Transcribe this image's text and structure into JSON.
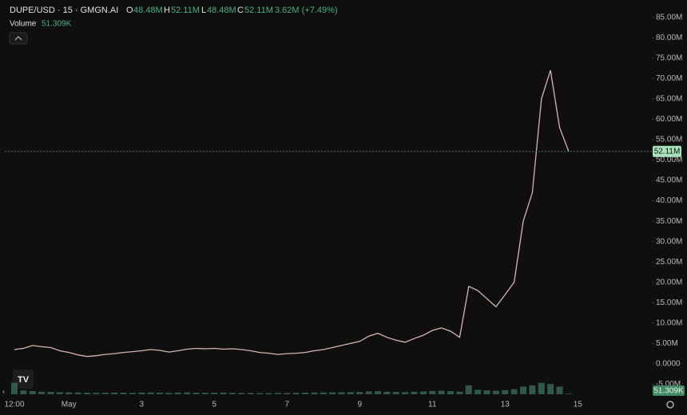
{
  "chart_data": {
    "type": "line",
    "title": "DUPE/USD · 15 · GMGN.AI",
    "ohlc": {
      "O": "48.48M",
      "H": "52.11M",
      "L": "48.48M",
      "C": "52.11M"
    },
    "change": "3.62M (+7.49%)",
    "categories": [
      "12:00",
      null,
      null,
      null,
      null,
      null,
      "May",
      null,
      null,
      null,
      null,
      null,
      null,
      null,
      "3",
      null,
      null,
      null,
      null,
      null,
      null,
      null,
      "5",
      null,
      null,
      null,
      null,
      null,
      null,
      null,
      "7",
      null,
      null,
      null,
      null,
      null,
      null,
      null,
      "9",
      null,
      null,
      null,
      null,
      null,
      null,
      null,
      "11",
      null,
      null,
      null,
      null,
      null,
      null,
      null,
      "13",
      null,
      null,
      null,
      null,
      null,
      null,
      null,
      "15"
    ],
    "series": [
      {
        "name": "DUPE/USD",
        "color": "#d8b4ae",
        "values": [
          3.5,
          3.8,
          4.5,
          4.2,
          4.0,
          3.2,
          2.8,
          2.2,
          1.8,
          2.0,
          2.3,
          2.5,
          2.8,
          3.0,
          3.2,
          3.5,
          3.3,
          2.9,
          3.2,
          3.6,
          3.8,
          3.7,
          3.8,
          3.6,
          3.7,
          3.5,
          3.2,
          2.8,
          2.6,
          2.3,
          2.5,
          2.6,
          2.8,
          3.2,
          3.5,
          4.0,
          4.5,
          5.0,
          5.5,
          6.8,
          7.5,
          6.5,
          5.8,
          5.3,
          6.2,
          7.0,
          8.2,
          8.8,
          8.0,
          6.5,
          19,
          18,
          16,
          14,
          17,
          20,
          35,
          42,
          65,
          72,
          58,
          52.11,
          null
        ],
        "last_label": "52.11M"
      },
      {
        "name": "Volume",
        "color": "#3a6b5a",
        "value_label": "51.309K",
        "values": [
          900,
          300,
          250,
          200,
          180,
          160,
          150,
          140,
          120,
          110,
          120,
          130,
          120,
          110,
          130,
          140,
          120,
          110,
          130,
          140,
          120,
          110,
          120,
          130,
          110,
          100,
          100,
          90,
          90,
          100,
          100,
          110,
          120,
          130,
          140,
          150,
          160,
          170,
          180,
          220,
          240,
          200,
          180,
          170,
          200,
          220,
          260,
          280,
          240,
          200,
          700,
          350,
          300,
          280,
          320,
          400,
          600,
          700,
          900,
          800,
          600,
          51.309,
          null
        ]
      }
    ],
    "volume_ylim": [
      0,
      2500
    ],
    "ylim": [
      -5.7,
      87.3
    ],
    "yticks": [
      {
        "value": 85,
        "label": "85.00M"
      },
      {
        "value": 80,
        "label": "80.00M"
      },
      {
        "value": 75,
        "label": "75.00M"
      },
      {
        "value": 70,
        "label": "70.00M"
      },
      {
        "value": 65,
        "label": "65.00M"
      },
      {
        "value": 60,
        "label": "60.00M"
      },
      {
        "value": 55,
        "label": "55.00M"
      },
      {
        "value": 50,
        "label": "50.00M"
      },
      {
        "value": 45,
        "label": "45.00M"
      },
      {
        "value": 40,
        "label": "40.00M"
      },
      {
        "value": 35,
        "label": "35.00M"
      },
      {
        "value": 30,
        "label": "30.00M"
      },
      {
        "value": 25,
        "label": "25.00M"
      },
      {
        "value": 20,
        "label": "20.00M"
      },
      {
        "value": 15,
        "label": "15.00M"
      },
      {
        "value": 10,
        "label": "10.00M"
      },
      {
        "value": 5,
        "label": "5.00M"
      },
      {
        "value": 0,
        "label": "0.0000"
      },
      {
        "value": -5,
        "label": "-5.00M"
      }
    ],
    "grid": false
  }
}
